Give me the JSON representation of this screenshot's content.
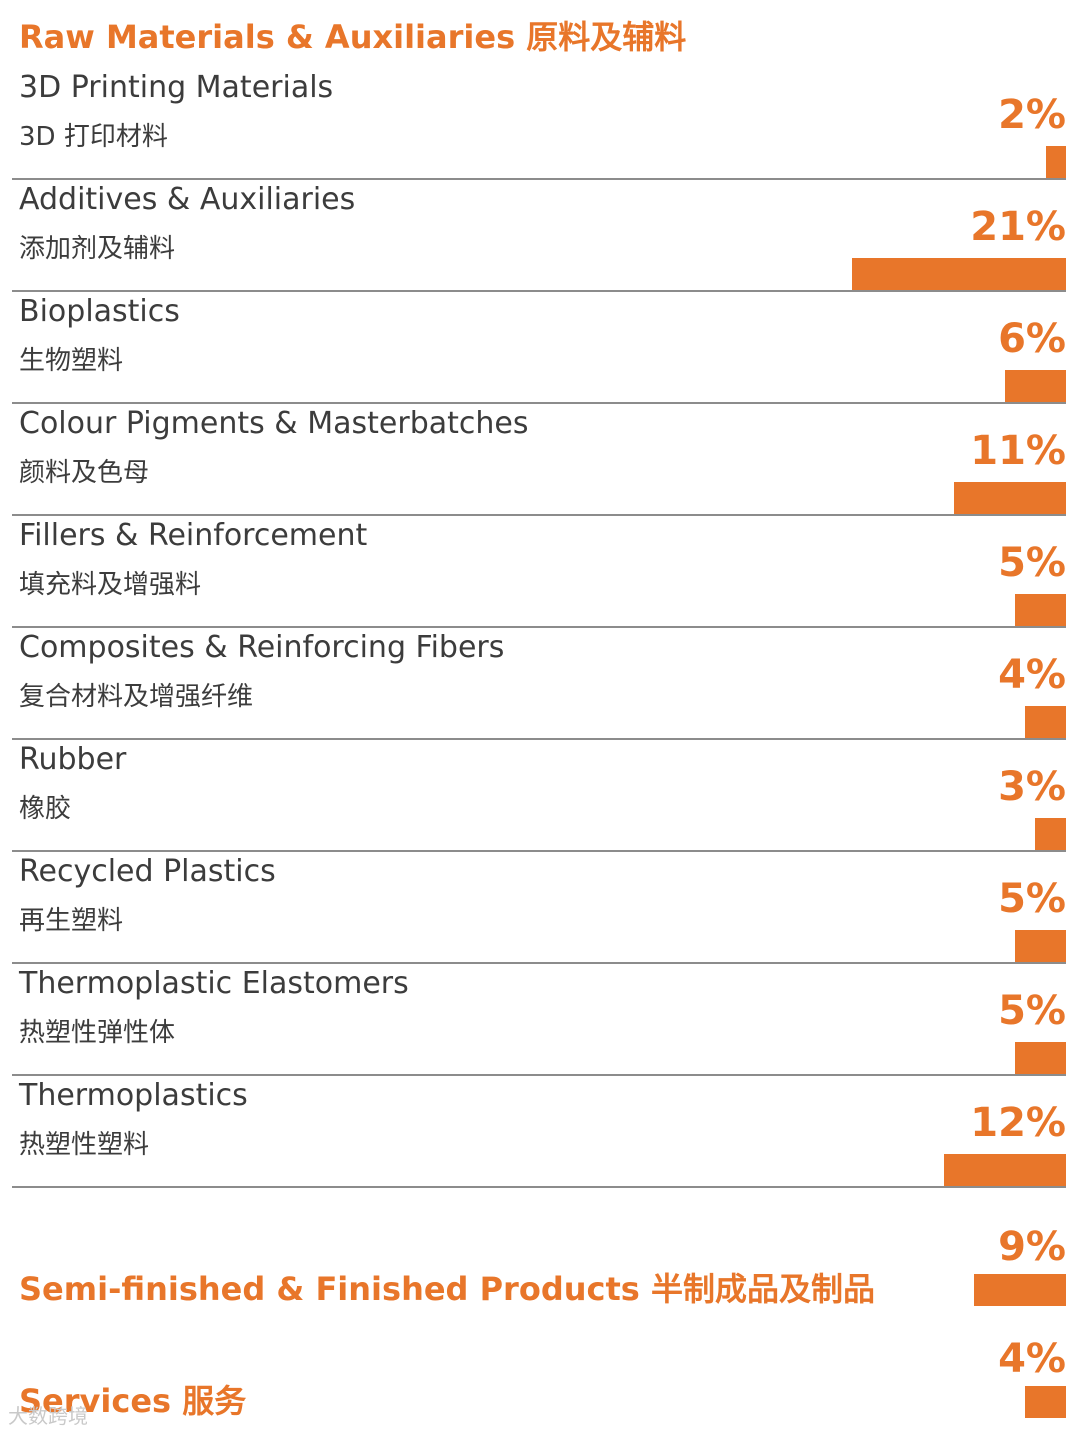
{
  "chart_data": {
    "type": "bar",
    "title": "Raw Materials & Auxiliaries 原料及辅料",
    "unit": "%",
    "xlim": [
      0,
      21
    ],
    "categories": [
      {
        "en": "3D Printing Materials",
        "zh": "3D 打印材料",
        "value": 2,
        "label": "2%"
      },
      {
        "en": "Additives & Auxiliaries",
        "zh": "添加剂及辅料",
        "value": 21,
        "label": "21%"
      },
      {
        "en": "Bioplastics",
        "zh": "生物塑料",
        "value": 6,
        "label": "6%"
      },
      {
        "en": "Colour Pigments & Masterbatches",
        "zh": "颜料及色母",
        "value": 11,
        "label": "11%"
      },
      {
        "en": "Fillers & Reinforcement",
        "zh": "填充料及增强料",
        "value": 5,
        "label": "5%"
      },
      {
        "en": "Composites & Reinforcing Fibers",
        "zh": "复合材料及增强纤维",
        "value": 4,
        "label": "4%"
      },
      {
        "en": "Rubber",
        "zh": "橡胶",
        "value": 3,
        "label": "3%"
      },
      {
        "en": "Recycled Plastics",
        "zh": "再生塑料",
        "value": 5,
        "label": "5%"
      },
      {
        "en": "Thermoplastic Elastomers",
        "zh": "热塑性弹性体",
        "value": 5,
        "label": "5%"
      },
      {
        "en": "Thermoplastics",
        "zh": "热塑性塑料",
        "value": 12,
        "label": "12%"
      }
    ],
    "groups": [
      {
        "title": "Semi-finished & Finished Products 半制成品及制品",
        "value": 9,
        "label": "9%"
      },
      {
        "title": "Services 服务",
        "value": 4,
        "label": "4%"
      }
    ],
    "bar_color": "#e8762a",
    "divider_color": "#8c8c8c"
  },
  "watermark": "大数跨境"
}
